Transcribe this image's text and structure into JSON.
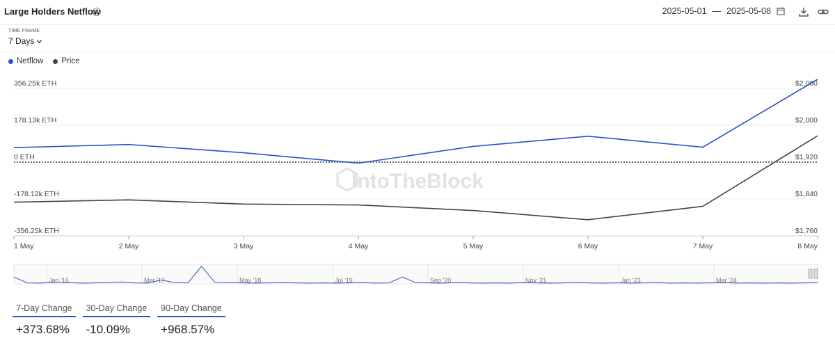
{
  "header": {
    "title": "Large Holders Netflow",
    "date_start": "2025-05-01",
    "date_end": "2025-05-08"
  },
  "timeframe": {
    "label": "TIME FRAME",
    "value": "7 Days"
  },
  "legend": [
    {
      "name": "Netflow",
      "color": "#2b50c7"
    },
    {
      "name": "Price",
      "color": "#444444"
    }
  ],
  "watermark": "IntoTheBlock",
  "colors": {
    "netflow": "#2b50c7",
    "price": "#444444",
    "accent": "#2b50c7"
  },
  "chart_data": {
    "type": "line",
    "categories": [
      "1 May",
      "2 May",
      "3 May",
      "4 May",
      "5 May",
      "6 May",
      "7 May",
      "8 May"
    ],
    "series": [
      {
        "name": "Netflow",
        "axis": "left",
        "unit": "ETH",
        "values": [
          70000,
          85000,
          45000,
          -5000,
          76000,
          125000,
          72000,
          400000
        ]
      },
      {
        "name": "Price",
        "axis": "right",
        "unit": "USD",
        "values": [
          1833,
          1838,
          1829,
          1827,
          1815,
          1795,
          1824,
          1977
        ]
      }
    ],
    "y_left": {
      "ticks": [
        "356.25k ETH",
        "178.13k ETH",
        "0 ETH",
        "-178.12k ETH",
        "-356.25k ETH"
      ],
      "range": [
        -356250,
        356250
      ]
    },
    "y_right": {
      "ticks": [
        "$2,080",
        "$2,000",
        "$1,920",
        "$1,840",
        "$1,760"
      ],
      "range": [
        1760,
        2080
      ]
    },
    "zero_line": "dotted",
    "grid": true,
    "legend_position": "top-left"
  },
  "navigator": {
    "labels": [
      "Jan '16",
      "Mar '17",
      "May '18",
      "Jul '19",
      "Sep '20",
      "Nov '21",
      "Jan '23",
      "Mar '24"
    ],
    "values": [
      0.35,
      0.05,
      0.04,
      0.08,
      0.06,
      0.04,
      0.05,
      0.06,
      0.1,
      0.05,
      0.04,
      0.2,
      0.06,
      0.05,
      0.9,
      0.08,
      0.06,
      0.05,
      0.04,
      0.05,
      0.06,
      0.05,
      0.04,
      0.05,
      0.04,
      0.05,
      0.06,
      0.04,
      0.05,
      0.35,
      0.06,
      0.05,
      0.04,
      0.06,
      0.05,
      0.04,
      0.05,
      0.04,
      0.06,
      0.05,
      0.04,
      0.05,
      0.06,
      0.05,
      0.04,
      0.05,
      0.04,
      0.05,
      0.06,
      0.04,
      0.05,
      0.04,
      0.05,
      0.06,
      0.04,
      0.05,
      0.04,
      0.05,
      0.04,
      0.05,
      0.06
    ]
  },
  "stats": [
    {
      "label": "7-Day Change",
      "value": "+373.68%"
    },
    {
      "label": "30-Day Change",
      "value": "-10.09%"
    },
    {
      "label": "90-Day Change",
      "value": "+968.57%"
    }
  ]
}
